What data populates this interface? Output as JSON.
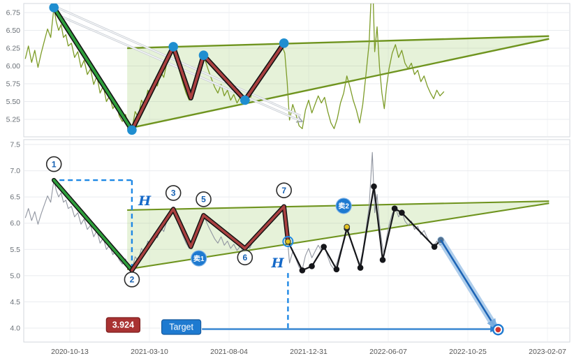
{
  "chart_data": {
    "type": "line",
    "title": "",
    "description": "Two-panel stock chart with zigzag wave annotation, converging triangle, sell markers and downside price target",
    "x_tick_labels": [
      "2020-10-13",
      "2021-03-10",
      "2021-08-04",
      "2021-12-31",
      "2022-06-07",
      "2022-10-25",
      "2023-02-07"
    ],
    "x_unit": "tick_index",
    "panels": [
      {
        "name": "upper",
        "y_ticks": [
          "6.75",
          "6.50",
          "6.25",
          "6.00",
          "5.75",
          "5.50",
          "5.25"
        ]
      },
      {
        "name": "lower",
        "y_ticks": [
          "7.5",
          "7.0",
          "6.5",
          "6.0",
          "5.5",
          "5.0",
          "4.5",
          "4.0"
        ]
      }
    ],
    "price_series": [
      [
        -0.56,
        6.1
      ],
      [
        -0.52,
        6.28
      ],
      [
        -0.48,
        6.05
      ],
      [
        -0.44,
        6.22
      ],
      [
        -0.4,
        5.98
      ],
      [
        -0.36,
        6.18
      ],
      [
        -0.32,
        6.35
      ],
      [
        -0.28,
        6.52
      ],
      [
        -0.24,
        6.4
      ],
      [
        -0.2,
        6.82
      ],
      [
        -0.17,
        6.62
      ],
      [
        -0.14,
        6.5
      ],
      [
        -0.11,
        6.58
      ],
      [
        -0.08,
        6.4
      ],
      [
        -0.05,
        6.44
      ],
      [
        -0.02,
        6.28
      ],
      [
        0.02,
        6.32
      ],
      [
        0.06,
        6.12
      ],
      [
        0.1,
        6.2
      ],
      [
        0.14,
        5.98
      ],
      [
        0.18,
        6.08
      ],
      [
        0.22,
        5.88
      ],
      [
        0.26,
        5.96
      ],
      [
        0.3,
        5.74
      ],
      [
        0.34,
        5.86
      ],
      [
        0.38,
        5.62
      ],
      [
        0.42,
        5.72
      ],
      [
        0.46,
        5.5
      ],
      [
        0.5,
        5.58
      ],
      [
        0.54,
        5.4
      ],
      [
        0.58,
        5.48
      ],
      [
        0.62,
        5.3
      ],
      [
        0.66,
        5.22
      ],
      [
        0.7,
        5.32
      ],
      [
        0.74,
        5.14
      ],
      [
        0.78,
        5.1
      ],
      [
        0.82,
        5.36
      ],
      [
        0.86,
        5.28
      ],
      [
        0.9,
        5.52
      ],
      [
        0.94,
        5.44
      ],
      [
        0.98,
        5.66
      ],
      [
        1.02,
        5.58
      ],
      [
        1.06,
        5.8
      ],
      [
        1.1,
        5.72
      ],
      [
        1.14,
        5.92
      ],
      [
        1.18,
        5.84
      ],
      [
        1.22,
        6.05
      ],
      [
        1.26,
        6.14
      ],
      [
        1.3,
        6.27
      ],
      [
        1.34,
        6.08
      ],
      [
        1.38,
        5.92
      ],
      [
        1.42,
        5.76
      ],
      [
        1.46,
        5.62
      ],
      [
        1.5,
        5.52
      ],
      [
        1.54,
        5.68
      ],
      [
        1.58,
        5.84
      ],
      [
        1.62,
        6.0
      ],
      [
        1.66,
        6.12
      ],
      [
        1.7,
        6.08
      ],
      [
        1.74,
        5.94
      ],
      [
        1.78,
        5.82
      ],
      [
        1.82,
        5.7
      ],
      [
        1.86,
        5.62
      ],
      [
        1.9,
        5.74
      ],
      [
        1.94,
        5.58
      ],
      [
        1.98,
        5.66
      ],
      [
        2.02,
        5.52
      ],
      [
        2.06,
        5.6
      ],
      [
        2.1,
        5.48
      ],
      [
        2.14,
        5.56
      ],
      [
        2.18,
        5.46
      ],
      [
        2.22,
        5.58
      ],
      [
        2.26,
        5.52
      ],
      [
        2.3,
        5.66
      ],
      [
        2.36,
        5.74
      ],
      [
        2.42,
        5.88
      ],
      [
        2.48,
        5.98
      ],
      [
        2.54,
        6.1
      ],
      [
        2.6,
        6.22
      ],
      [
        2.66,
        6.3
      ],
      [
        2.7,
        6.18
      ],
      [
        2.73,
        5.78
      ],
      [
        2.76,
        5.24
      ],
      [
        2.8,
        5.46
      ],
      [
        2.84,
        5.32
      ],
      [
        2.88,
        5.16
      ],
      [
        2.92,
        5.12
      ],
      [
        2.96,
        5.38
      ],
      [
        3.0,
        5.52
      ],
      [
        3.04,
        5.34
      ],
      [
        3.08,
        5.46
      ],
      [
        3.12,
        5.58
      ],
      [
        3.16,
        5.48
      ],
      [
        3.2,
        5.56
      ],
      [
        3.24,
        5.36
      ],
      [
        3.28,
        5.2
      ],
      [
        3.32,
        5.12
      ],
      [
        3.36,
        5.26
      ],
      [
        3.4,
        5.48
      ],
      [
        3.44,
        5.62
      ],
      [
        3.48,
        5.86
      ],
      [
        3.52,
        5.7
      ],
      [
        3.56,
        5.52
      ],
      [
        3.6,
        5.38
      ],
      [
        3.64,
        5.2
      ],
      [
        3.68,
        5.46
      ],
      [
        3.72,
        5.88
      ],
      [
        3.76,
        6.32
      ],
      [
        3.8,
        7.35
      ],
      [
        3.83,
        6.2
      ],
      [
        3.86,
        6.55
      ],
      [
        3.89,
        5.98
      ],
      [
        3.92,
        5.62
      ],
      [
        3.95,
        5.4
      ],
      [
        3.98,
        5.72
      ],
      [
        4.01,
        5.96
      ],
      [
        4.05,
        6.18
      ],
      [
        4.09,
        6.3
      ],
      [
        4.13,
        6.12
      ],
      [
        4.17,
        6.22
      ],
      [
        4.21,
        6.04
      ],
      [
        4.25,
        5.96
      ],
      [
        4.29,
        6.04
      ],
      [
        4.33,
        5.88
      ],
      [
        4.37,
        5.94
      ],
      [
        4.41,
        5.78
      ],
      [
        4.45,
        5.86
      ],
      [
        4.49,
        5.72
      ],
      [
        4.53,
        5.62
      ],
      [
        4.57,
        5.54
      ],
      [
        4.61,
        5.66
      ],
      [
        4.65,
        5.58
      ],
      [
        4.7,
        5.64
      ]
    ],
    "impulse_line": [
      [
        -0.2,
        6.82
      ],
      [
        0.78,
        5.1
      ]
    ],
    "red_zigzag": [
      [
        0.78,
        5.1
      ],
      [
        1.3,
        6.27
      ],
      [
        1.52,
        5.55
      ],
      [
        1.68,
        6.15
      ],
      [
        2.2,
        5.52
      ],
      [
        2.69,
        6.32
      ],
      [
        2.74,
        5.65
      ]
    ],
    "black_zigzag": [
      [
        2.74,
        5.65
      ],
      [
        2.92,
        5.1
      ],
      [
        3.04,
        5.18
      ],
      [
        3.19,
        5.55
      ],
      [
        3.35,
        5.12
      ],
      [
        3.48,
        5.9
      ],
      [
        3.65,
        5.15
      ],
      [
        3.82,
        6.7
      ],
      [
        3.93,
        5.3
      ],
      [
        4.08,
        6.28
      ],
      [
        4.17,
        6.2
      ],
      [
        4.58,
        5.55
      ],
      [
        4.66,
        5.68
      ]
    ],
    "upper_panel_dots": [
      [
        -0.2,
        6.82
      ],
      [
        0.78,
        5.1
      ],
      [
        1.3,
        6.27
      ],
      [
        1.68,
        6.15
      ],
      [
        2.2,
        5.52
      ],
      [
        2.69,
        6.32
      ]
    ],
    "triangle": {
      "upper": [
        [
          0.72,
          6.25
        ],
        [
          6.02,
          6.42
        ]
      ],
      "lower": [
        [
          0.72,
          5.12
        ],
        [
          6.02,
          6.38
        ]
      ]
    },
    "channel_lines": [
      [
        [
          -0.2,
          6.84
        ],
        [
          2.9,
          5.3
        ]
      ],
      [
        [
          -0.16,
          6.72
        ],
        [
          2.92,
          5.22
        ]
      ]
    ],
    "dashed_measure": {
      "horizontal": [
        [
          -0.13,
          6.82
        ],
        [
          0.78,
          6.82
        ]
      ],
      "vertical": [
        [
          0.78,
          6.82
        ],
        [
          0.78,
          5.1
        ]
      ],
      "target_vertical": [
        [
          2.74,
          5.05
        ],
        [
          2.74,
          3.98
        ]
      ]
    },
    "numbered_points": [
      {
        "label": "1",
        "x": -0.2,
        "price": 6.82,
        "side": "above"
      },
      {
        "label": "2",
        "x": 0.78,
        "price": 5.1,
        "side": "below"
      },
      {
        "label": "3",
        "x": 1.3,
        "price": 6.27,
        "side": "above"
      },
      {
        "label": "5",
        "x": 1.68,
        "price": 6.15,
        "side": "above"
      },
      {
        "label": "6",
        "x": 2.2,
        "price": 5.52,
        "side": "below"
      },
      {
        "label": "7",
        "x": 2.69,
        "price": 6.32,
        "side": "above"
      }
    ],
    "sell_markers": [
      {
        "label": "卖1",
        "x": 1.62,
        "price": 5.33
      },
      {
        "label": "卖2",
        "x": 3.44,
        "price": 6.33
      }
    ],
    "sell_points": [
      [
        2.74,
        5.65
      ],
      [
        3.48,
        5.93
      ]
    ],
    "h_labels": [
      {
        "text": "H",
        "x": 0.94,
        "price": 6.42
      },
      {
        "text": "H",
        "x": 2.61,
        "price": 5.24
      }
    ],
    "price_target_box": {
      "text": "3.924",
      "x": 0.67,
      "price": 4.06
    },
    "target_button": {
      "text": "Target",
      "x": 1.4,
      "price": 4.02
    },
    "target_arrow": {
      "from_x": 1.66,
      "to_x": 5.3,
      "price": 3.98
    },
    "projection_arrow": {
      "from": [
        4.66,
        5.68
      ],
      "to": [
        5.33,
        4.05
      ]
    },
    "target_point": {
      "x": 5.38,
      "price": 3.97
    },
    "target_value": "3.924",
    "colors": {
      "price_upper": "#7d9c28",
      "price_lower": "#9095a0",
      "trend": "#6f941f",
      "triangle_fill": "rgba(141,198,83,0.22)",
      "impulse": "#2f9e3c",
      "zigzag_red": "#a94040",
      "dot_blue": "#1f8ed0",
      "dashed_blue": "#1e88e5",
      "black_line": "#15161a",
      "arrow_glow": "#7aadde",
      "arrow_core": "#1b63b5",
      "sell_badge": "#1e7ad0",
      "marker_yellow": "#e2c221",
      "target_red": "#cf3630",
      "box_red": "#a93232",
      "button_blue": "#1e7ad0",
      "grid": "#e9ebef",
      "axis_text": "#696f76"
    }
  }
}
